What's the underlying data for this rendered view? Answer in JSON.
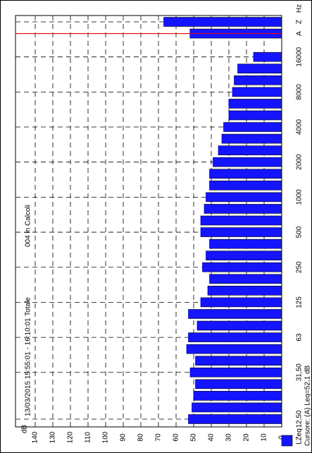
{
  "chart_data": {
    "type": "bar",
    "title": "004 in Calcoli",
    "subtitle": "13/03/2015 15:55:01 - 16:10:01  Totale",
    "x_label": "Hz",
    "y_label": "dB",
    "categories": [
      "12,50",
      null,
      null,
      null,
      "31,50",
      null,
      null,
      "63",
      null,
      null,
      "125",
      null,
      null,
      "250",
      null,
      null,
      "500",
      null,
      null,
      "1000",
      null,
      null,
      "2000",
      null,
      null,
      "4000",
      null,
      null,
      "8000",
      null,
      null,
      "16000",
      null,
      "A",
      "Z"
    ],
    "series": [
      {
        "name": "LZeq",
        "color": "#1414ff",
        "values": [
          53,
          51,
          50,
          49,
          52,
          49,
          54,
          53,
          48,
          53,
          46,
          42,
          41,
          45,
          43,
          41,
          46,
          46,
          44,
          43,
          41,
          41,
          39,
          36,
          34,
          33,
          30,
          30,
          28,
          27,
          25,
          16,
          null,
          52.1,
          67
        ]
      }
    ],
    "ylim": [
      0,
      140
    ],
    "yticks": [
      0,
      10,
      20,
      30,
      40,
      50,
      60,
      70,
      80,
      90,
      100,
      110,
      120,
      130,
      140
    ],
    "grid": true,
    "annotation": "Cursore: (A)  Leq=52,1 dB",
    "cursor_index": 33,
    "cursor_color": "#e00000"
  }
}
